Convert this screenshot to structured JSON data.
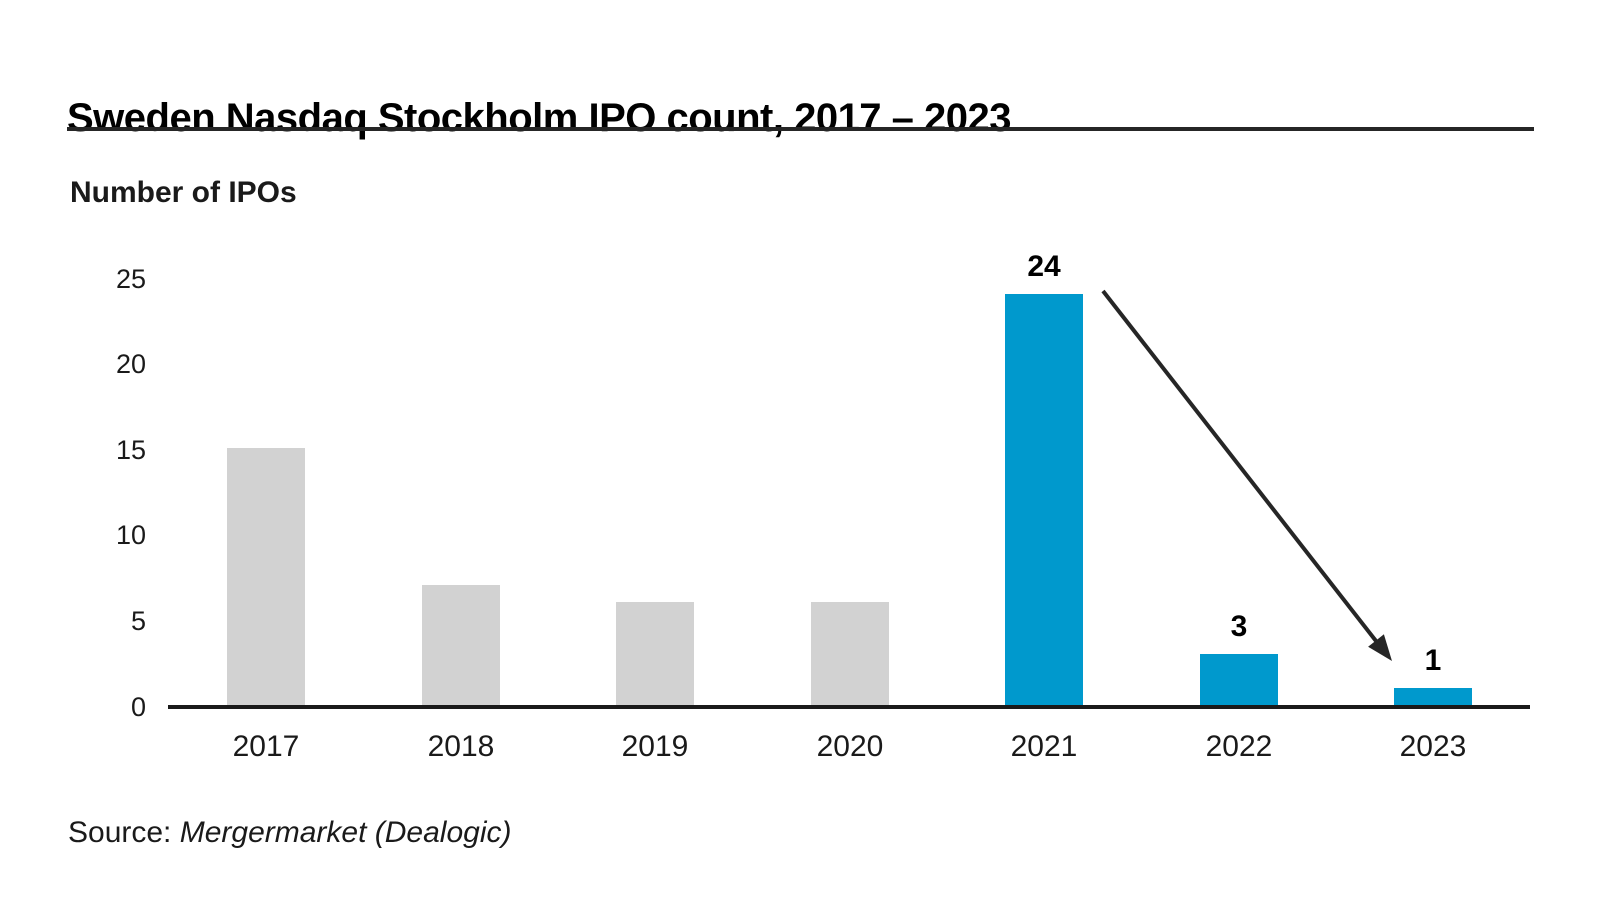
{
  "header": {
    "title": "Sweden Nasdaq Stockholm IPO count, 2017 – 2023"
  },
  "chart_data": {
    "type": "bar",
    "title": "Sweden Nasdaq Stockholm IPO count, 2017 – 2023",
    "ylabel": "Number of IPOs",
    "xlabel": "",
    "categories": [
      "2017",
      "2018",
      "2019",
      "2020",
      "2021",
      "2022",
      "2023"
    ],
    "values": [
      15,
      7,
      6,
      6,
      24,
      3,
      1
    ],
    "bar_labels": [
      "",
      "",
      "",
      "",
      "24",
      "3",
      "1"
    ],
    "bar_styles": [
      "muted",
      "muted",
      "muted",
      "muted",
      "highlight",
      "highlight",
      "highlight"
    ],
    "yticks": [
      0,
      5,
      10,
      15,
      20,
      25
    ],
    "ylim": [
      0,
      25
    ],
    "grid": false,
    "legend": "none",
    "colors": {
      "highlight": "#0099cd",
      "muted": "#d2d2d2",
      "ink": "#1a1a1a"
    },
    "annotation_arrow": {
      "from": "2021",
      "to": "2023"
    }
  },
  "source": {
    "label": "Source:",
    "value": "Mergermarket (Dealogic)"
  }
}
